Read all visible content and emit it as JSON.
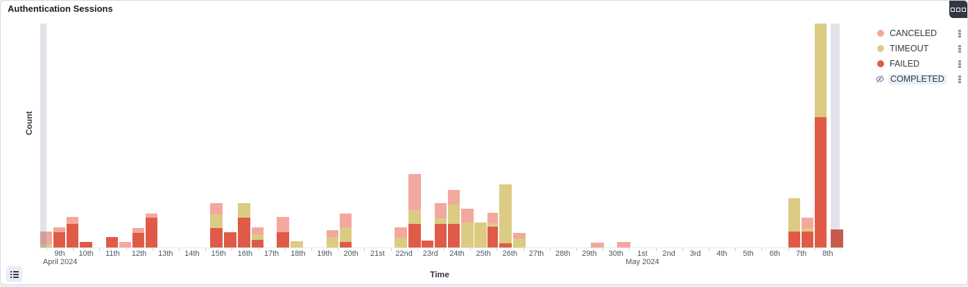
{
  "panel": {
    "title": "Authentication Sessions",
    "panel_options_icon": "three-squares-menu-icon",
    "legend_toggle_icon": "list-icon"
  },
  "legend": {
    "items": [
      {
        "label": "CANCELED",
        "color": "#F2A89E",
        "hidden": false
      },
      {
        "label": "TIMEOUT",
        "color": "#DCCB82",
        "hidden": false
      },
      {
        "label": "FAILED",
        "color": "#DF5B47",
        "hidden": false
      },
      {
        "label": "COMPLETED",
        "color": null,
        "hidden": true,
        "highlight_bg": "#e6f0fa",
        "icon": "eye-slash-icon"
      }
    ],
    "row_action_icon": "kebab-menu-icon"
  },
  "chart_data": {
    "type": "bar",
    "stacked": true,
    "title": "Authentication Sessions",
    "xlabel": "Time",
    "ylabel": "Count",
    "legend_position": "right",
    "grid": false,
    "y_axis_note": "no numeric y-axis tick labels are shown; segment sizes below are screen-proportional heights in px (plot height 323px = full scale)",
    "series": [
      "CANCELED",
      "TIMEOUT",
      "FAILED"
    ],
    "series_colors": {
      "CANCELED": "#F2A89E",
      "TIMEOUT": "#DCCB82",
      "FAILED": "#DF5B47",
      "FAILED_MUTED": "#C65B4D",
      "EDGE": "#E1E3E8"
    },
    "axis_geom": {
      "plot_left": 55,
      "plot_right": 1218,
      "plot_top": 33,
      "plot_bottom": 356,
      "label_start_x": 85,
      "day_spacing": 38.2
    },
    "x_ticks": [
      {
        "label": "9th",
        "secondary": "April 2024"
      },
      {
        "label": "10th"
      },
      {
        "label": "11th"
      },
      {
        "label": "12th"
      },
      {
        "label": "13th"
      },
      {
        "label": "14th"
      },
      {
        "label": "15th"
      },
      {
        "label": "16th"
      },
      {
        "label": "17th"
      },
      {
        "label": "18th"
      },
      {
        "label": "19th"
      },
      {
        "label": "20th"
      },
      {
        "label": "21st"
      },
      {
        "label": "22nd"
      },
      {
        "label": "23rd"
      },
      {
        "label": "24th"
      },
      {
        "label": "25th"
      },
      {
        "label": "26th"
      },
      {
        "label": "27th"
      },
      {
        "label": "28th"
      },
      {
        "label": "29th"
      },
      {
        "label": "30th"
      },
      {
        "label": "1st",
        "secondary": "May 2024"
      },
      {
        "label": "2nd"
      },
      {
        "label": "3rd"
      },
      {
        "label": "4th"
      },
      {
        "label": "5th"
      },
      {
        "label": "6th"
      },
      {
        "label": "7th"
      },
      {
        "label": "8th"
      }
    ],
    "bars": [
      {
        "x": 57,
        "w": 18,
        "edge_overlap_w": 9,
        "segs": [
          [
            "CANCELED",
            333,
            18
          ],
          [
            "TIMEOUT",
            351,
            5
          ]
        ]
      },
      {
        "x": 76,
        "w": 18,
        "segs": [
          [
            "CANCELED",
            327,
            7
          ],
          [
            "FAILED",
            334,
            22
          ]
        ]
      },
      {
        "x": 95,
        "w": 18,
        "segs": [
          [
            "CANCELED",
            312,
            10
          ],
          [
            "FAILED",
            322,
            34
          ]
        ]
      },
      {
        "x": 114,
        "w": 19,
        "segs": [
          [
            "FAILED",
            348,
            8
          ]
        ]
      },
      {
        "x": 152,
        "w": 18,
        "segs": [
          [
            "FAILED",
            341,
            15
          ]
        ]
      },
      {
        "x": 171,
        "w": 18,
        "segs": [
          [
            "CANCELED",
            348,
            8
          ]
        ]
      },
      {
        "x": 190,
        "w": 18,
        "segs": [
          [
            "CANCELED",
            328,
            7
          ],
          [
            "FAILED",
            335,
            21
          ]
        ]
      },
      {
        "x": 209,
        "w": 18,
        "segs": [
          [
            "CANCELED",
            307,
            6
          ],
          [
            "FAILED",
            313,
            43
          ]
        ]
      },
      {
        "x": 302,
        "w": 19,
        "segs": [
          [
            "CANCELED",
            292,
            16
          ],
          [
            "TIMEOUT",
            308,
            20
          ],
          [
            "FAILED",
            328,
            28
          ]
        ]
      },
      {
        "x": 322,
        "w": 19,
        "segs": [
          [
            "FAILED",
            334,
            22
          ]
        ]
      },
      {
        "x": 342,
        "w": 19,
        "segs": [
          [
            "TIMEOUT",
            292,
            21
          ],
          [
            "FAILED",
            313,
            43
          ]
        ]
      },
      {
        "x": 362,
        "w": 18,
        "segs": [
          [
            "CANCELED",
            327,
            10
          ],
          [
            "TIMEOUT",
            337,
            8
          ],
          [
            "FAILED",
            345,
            11
          ]
        ]
      },
      {
        "x": 398,
        "w": 19,
        "segs": [
          [
            "CANCELED",
            312,
            22
          ],
          [
            "FAILED",
            334,
            22
          ]
        ]
      },
      {
        "x": 418,
        "w": 19,
        "segs": [
          [
            "TIMEOUT",
            347,
            9
          ]
        ]
      },
      {
        "x": 470,
        "w": 18,
        "segs": [
          [
            "CANCELED",
            331,
            10
          ],
          [
            "TIMEOUT",
            341,
            15
          ]
        ]
      },
      {
        "x": 489,
        "w": 18,
        "segs": [
          [
            "CANCELED",
            307,
            20
          ],
          [
            "TIMEOUT",
            327,
            21
          ],
          [
            "FAILED",
            348,
            8
          ]
        ]
      },
      {
        "x": 568,
        "w": 19,
        "segs": [
          [
            "CANCELED",
            327,
            15
          ],
          [
            "TIMEOUT",
            342,
            14
          ]
        ]
      },
      {
        "x": 588,
        "w": 19,
        "segs": [
          [
            "CANCELED",
            250,
            52
          ],
          [
            "TIMEOUT",
            302,
            20
          ],
          [
            "FAILED",
            322,
            34
          ]
        ]
      },
      {
        "x": 607,
        "w": 18,
        "segs": [
          [
            "FAILED",
            346,
            10
          ]
        ]
      },
      {
        "x": 626,
        "w": 18,
        "segs": [
          [
            "CANCELED",
            292,
            22
          ],
          [
            "TIMEOUT",
            314,
            8
          ],
          [
            "FAILED",
            322,
            34
          ]
        ]
      },
      {
        "x": 645,
        "w": 18,
        "segs": [
          [
            "CANCELED",
            273,
            21
          ],
          [
            "TIMEOUT",
            294,
            28
          ],
          [
            "FAILED",
            322,
            34
          ]
        ]
      },
      {
        "x": 664,
        "w": 19,
        "segs": [
          [
            "CANCELED",
            300,
            20
          ],
          [
            "TIMEOUT",
            320,
            36
          ]
        ]
      },
      {
        "x": 683,
        "w": 19,
        "segs": [
          [
            "TIMEOUT",
            320,
            36
          ]
        ]
      },
      {
        "x": 702,
        "w": 16,
        "segs": [
          [
            "CANCELED",
            306,
            15
          ],
          [
            "TIMEOUT",
            321,
            5
          ],
          [
            "FAILED",
            326,
            30
          ]
        ]
      },
      {
        "x": 719,
        "w": 19,
        "segs": [
          [
            "TIMEOUT",
            265,
            85
          ],
          [
            "FAILED",
            350,
            6
          ]
        ]
      },
      {
        "x": 739,
        "w": 19,
        "segs": [
          [
            "CANCELED",
            335,
            8
          ],
          [
            "TIMEOUT",
            343,
            13
          ]
        ]
      },
      {
        "x": 851,
        "w": 20,
        "segs": [
          [
            "CANCELED",
            349,
            7
          ]
        ]
      },
      {
        "x": 889,
        "w": 20,
        "segs": [
          [
            "CANCELED",
            348,
            8
          ]
        ]
      },
      {
        "x": 1136,
        "w": 18,
        "segs": [
          [
            "TIMEOUT",
            285,
            48
          ],
          [
            "FAILED",
            333,
            23
          ]
        ]
      },
      {
        "x": 1155,
        "w": 18,
        "segs": [
          [
            "CANCELED",
            313,
            15
          ],
          [
            "TIMEOUT",
            328,
            5
          ],
          [
            "FAILED",
            333,
            23
          ]
        ]
      },
      {
        "x": 1174,
        "w": 18,
        "segs": [
          [
            "TIMEOUT",
            33,
            135
          ],
          [
            "FAILED",
            168,
            188
          ]
        ]
      },
      {
        "x": 1197,
        "w": 19,
        "muted": true,
        "segs": [
          [
            "FAILED",
            330,
            26
          ]
        ]
      }
    ],
    "edge_bars": [
      {
        "x": 57,
        "w": 9,
        "top": 33,
        "bottom": 356
      },
      {
        "x": 1197,
        "w": 13,
        "top": 33,
        "bottom": 330
      }
    ]
  }
}
